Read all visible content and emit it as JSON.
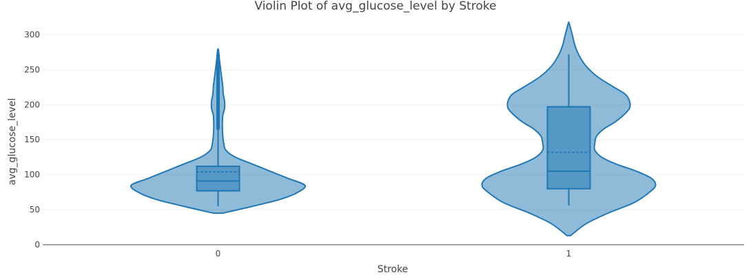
{
  "chart_data": {
    "type": "violin",
    "title": "Violin Plot of avg_glucose_level by Stroke",
    "xlabel": "Stroke",
    "ylabel": "avg_glucose_level",
    "categories": [
      "0",
      "1"
    ],
    "ylim": [
      0,
      320
    ],
    "yticks": [
      0,
      50,
      100,
      150,
      200,
      250,
      300
    ],
    "grid": true,
    "legend": "none",
    "color": "#1f77b4",
    "groups": [
      {
        "category": "0",
        "min": 55,
        "q1": 77,
        "median": 91,
        "mean": 104,
        "q3": 112,
        "upper_fence": 166,
        "range": [
          45,
          278
        ],
        "dense_band": [
          166,
          270
        ],
        "density": [
          [
            45,
            0.05
          ],
          [
            55,
            0.4
          ],
          [
            65,
            0.72
          ],
          [
            75,
            0.92
          ],
          [
            85,
            1.0
          ],
          [
            95,
            0.8
          ],
          [
            105,
            0.6
          ],
          [
            115,
            0.4
          ],
          [
            125,
            0.2
          ],
          [
            135,
            0.09
          ],
          [
            145,
            0.065
          ],
          [
            155,
            0.055
          ],
          [
            165,
            0.05
          ],
          [
            175,
            0.05
          ],
          [
            185,
            0.055
          ],
          [
            195,
            0.075
          ],
          [
            205,
            0.075
          ],
          [
            215,
            0.06
          ],
          [
            225,
            0.055
          ],
          [
            235,
            0.045
          ],
          [
            245,
            0.035
          ],
          [
            255,
            0.025
          ],
          [
            265,
            0.015
          ],
          [
            278,
            0.005
          ]
        ]
      },
      {
        "category": "1",
        "min": 56,
        "q1": 80,
        "median": 105,
        "mean": 132,
        "q3": 197,
        "upper_fence": 272,
        "range": [
          13,
          316
        ],
        "density": [
          [
            13,
            0.02
          ],
          [
            30,
            0.2
          ],
          [
            45,
            0.45
          ],
          [
            60,
            0.75
          ],
          [
            75,
            0.93
          ],
          [
            85,
            1.0
          ],
          [
            95,
            0.95
          ],
          [
            105,
            0.78
          ],
          [
            115,
            0.55
          ],
          [
            125,
            0.38
          ],
          [
            135,
            0.3
          ],
          [
            145,
            0.3
          ],
          [
            155,
            0.32
          ],
          [
            165,
            0.4
          ],
          [
            175,
            0.53
          ],
          [
            185,
            0.63
          ],
          [
            195,
            0.7
          ],
          [
            205,
            0.7
          ],
          [
            215,
            0.65
          ],
          [
            225,
            0.52
          ],
          [
            240,
            0.33
          ],
          [
            255,
            0.2
          ],
          [
            270,
            0.12
          ],
          [
            285,
            0.07
          ],
          [
            300,
            0.04
          ],
          [
            316,
            0.005
          ]
        ]
      }
    ]
  }
}
